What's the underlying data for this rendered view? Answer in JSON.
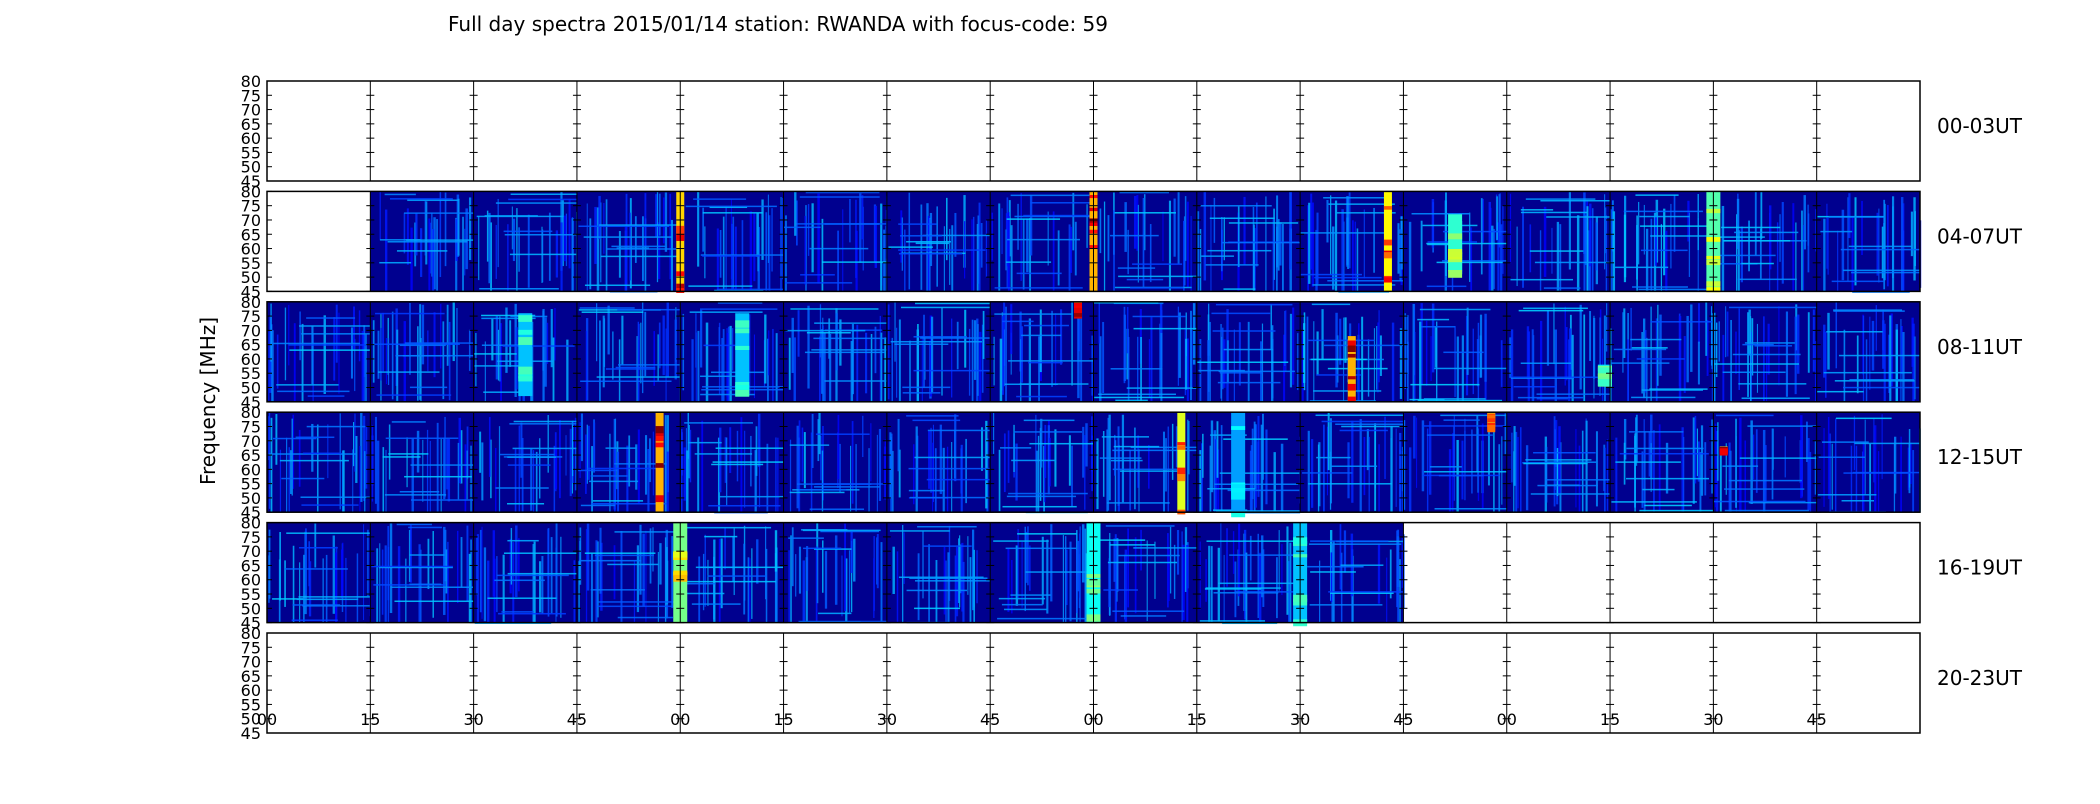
{
  "chart_data": {
    "type": "heatmap",
    "title": "Full day spectra 2015/01/14 station: RWANDA with focus-code: 59",
    "ylabel": "Frequency [MHz]",
    "xlabel": "",
    "ylim": [
      45,
      80
    ],
    "y_ticks": [
      "80",
      "75",
      "70",
      "65",
      "60",
      "55",
      "50",
      "45"
    ],
    "x_ticks": [
      "00",
      "15",
      "30",
      "45",
      "00",
      "15",
      "30",
      "45",
      "00",
      "15",
      "30",
      "45",
      "00",
      "15",
      "30",
      "45"
    ],
    "colormap": "jet",
    "colors": {
      "background": "#00008f",
      "low": "#0000d0",
      "mid": "#00c8ff",
      "high": "#ffff00",
      "peak": "#c80000"
    },
    "panels_per_row": 16,
    "rows": [
      {
        "label": "00-03UT",
        "data_segments": [],
        "hotspots": []
      },
      {
        "label": "04-07UT",
        "data_segments": [
          1,
          2,
          3,
          4,
          5,
          6,
          7,
          8,
          9,
          10,
          11,
          12,
          13,
          14,
          15
        ],
        "hotspots": [
          {
            "seg": 4,
            "pos": 0.0,
            "fmin": 45,
            "fmax": 80,
            "level": 0.95
          },
          {
            "seg": 8,
            "pos": 0.0,
            "fmin": 45,
            "fmax": 80,
            "level": 1.0
          },
          {
            "seg": 10,
            "pos": 0.85,
            "fmin": 45,
            "fmax": 80,
            "level": 0.9
          },
          {
            "seg": 11,
            "pos": 0.5,
            "fmin": 52,
            "fmax": 72,
            "level": 0.6
          },
          {
            "seg": 14,
            "pos": 0.0,
            "fmin": 45,
            "fmax": 80,
            "level": 0.65
          }
        ]
      },
      {
        "label": "08-11UT",
        "data_segments": [
          0,
          1,
          2,
          3,
          4,
          5,
          6,
          7,
          8,
          9,
          10,
          11,
          12,
          13,
          14,
          15
        ],
        "hotspots": [
          {
            "seg": 2,
            "pos": 0.5,
            "fmin": 47,
            "fmax": 76,
            "level": 0.45
          },
          {
            "seg": 4,
            "pos": 0.6,
            "fmin": 47,
            "fmax": 76,
            "level": 0.45
          },
          {
            "seg": 7,
            "pos": 0.85,
            "fmin": 76,
            "fmax": 80,
            "level": 1.0
          },
          {
            "seg": 10,
            "pos": 0.5,
            "fmin": 45,
            "fmax": 68,
            "level": 1.0
          },
          {
            "seg": 12,
            "pos": 0.95,
            "fmin": 52,
            "fmax": 58,
            "level": 0.5
          }
        ]
      },
      {
        "label": "12-15UT",
        "data_segments": [
          0,
          1,
          2,
          3,
          4,
          5,
          6,
          7,
          8,
          9,
          10,
          11,
          12,
          13,
          14,
          15
        ],
        "hotspots": [
          {
            "seg": 3,
            "pos": 0.8,
            "fmin": 45,
            "fmax": 80,
            "level": 1.0
          },
          {
            "seg": 8,
            "pos": 0.85,
            "fmin": 45,
            "fmax": 80,
            "level": 0.85
          },
          {
            "seg": 9,
            "pos": 0.4,
            "fmin": 45,
            "fmax": 80,
            "level": 0.4
          },
          {
            "seg": 11,
            "pos": 0.85,
            "fmin": 75,
            "fmax": 80,
            "level": 0.85
          },
          {
            "seg": 14,
            "pos": 0.1,
            "fmin": 67,
            "fmax": 68,
            "level": 1.0
          }
        ]
      },
      {
        "label": "16-19UT",
        "data_segments": [
          0,
          1,
          2,
          3,
          4,
          5,
          6,
          7,
          8,
          9,
          10
        ],
        "hotspots": [
          {
            "seg": 4,
            "pos": 0.0,
            "fmin": 45,
            "fmax": 80,
            "level": 0.7
          },
          {
            "seg": 8,
            "pos": 0.0,
            "fmin": 45,
            "fmax": 80,
            "level": 0.55
          },
          {
            "seg": 10,
            "pos": 0.0,
            "fmin": 45,
            "fmax": 80,
            "level": 0.45
          }
        ]
      },
      {
        "label": "20-23UT",
        "data_segments": [],
        "hotspots": []
      }
    ]
  }
}
